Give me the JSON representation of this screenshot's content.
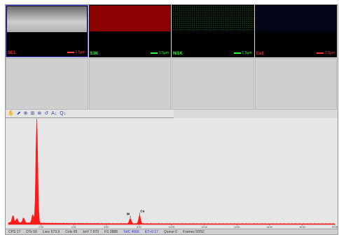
{
  "maps": [
    {
      "label": "SE1",
      "label_color": "#ff2a2a",
      "scale_text": "1.5µm",
      "scale_color": "#ff4040",
      "selected": true
    },
    {
      "label": "S1K",
      "label_color": "#33ff33",
      "scale_text": "1.5µm",
      "scale_color": "#33ff33",
      "selected": false
    },
    {
      "label": "Ni1K",
      "label_color": "#33ff33",
      "scale_text": "1.5µm",
      "scale_color": "#33ff33",
      "selected": false
    },
    {
      "label": "Cu1",
      "label_color": "#ff3333",
      "scale_text": "1.5µm",
      "scale_color": "#ff3333",
      "selected": false
    }
  ],
  "toolbar": {
    "icons": [
      "hand-icon",
      "cursor-icon",
      "zoom-in-icon",
      "zoom-fit-icon",
      "zoom-out-icon",
      "undo-icon",
      "label-icon",
      "quantify-icon"
    ],
    "glyphs": [
      "✋",
      "⬈",
      "⊕",
      "⊞",
      "⊗",
      "↺",
      "A↓",
      "Q↓"
    ]
  },
  "chart_data": {
    "type": "line",
    "xlim": [
      0,
      20
    ],
    "ylim": [
      0,
      100
    ],
    "x_ticks": [
      "2.00",
      "4.00",
      "6.00",
      "8.00",
      "10.00",
      "12.00",
      "14.00",
      "16.00",
      "18.00",
      "20.00"
    ],
    "series_color": "#ff1a1a",
    "peaks": [
      {
        "x": 1.74,
        "y": 100,
        "label": "Si"
      },
      {
        "x": 7.47,
        "y": 5,
        "label": "Ni"
      },
      {
        "x": 8.04,
        "y": 8,
        "label": "Cu"
      }
    ],
    "minor_peaks": [
      {
        "x": 0.28,
        "y": 7
      },
      {
        "x": 0.52,
        "y": 4
      },
      {
        "x": 0.93,
        "y": 5
      },
      {
        "x": 1.49,
        "y": 8
      }
    ]
  },
  "status": {
    "items": [
      "CPS 17",
      "DTs 59",
      "Lsec 573.9",
      "Cnts 85",
      "keV 7.970",
      "FS 3888",
      "TotC 4006",
      "ET+0.17",
      "Queue 0",
      "Frames 50/52"
    ],
    "highlight": [
      6,
      7
    ]
  }
}
